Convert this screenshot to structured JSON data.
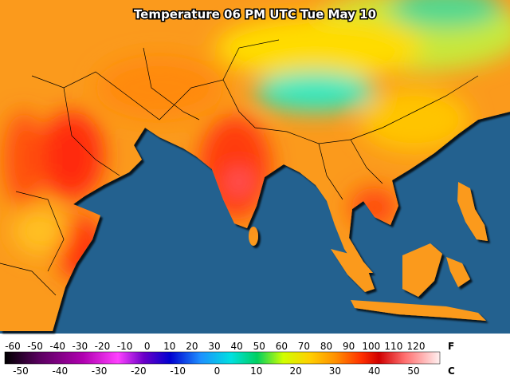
{
  "header": {
    "title": "Temperature 06 PM UTC Tue May 10"
  },
  "scale": {
    "fahrenheit": {
      "unit": "F",
      "labels": [
        "-60",
        "-50",
        "-40",
        "-30",
        "-20",
        "-10",
        "0",
        "10",
        "20",
        "30",
        "40",
        "50",
        "60",
        "70",
        "80",
        "90",
        "100",
        "110",
        "120"
      ]
    },
    "celsius": {
      "unit": "C",
      "labels": [
        "-50",
        "-40",
        "-30",
        "-20",
        "-10",
        "0",
        "10",
        "20",
        "30",
        "40",
        "50"
      ]
    }
  }
}
